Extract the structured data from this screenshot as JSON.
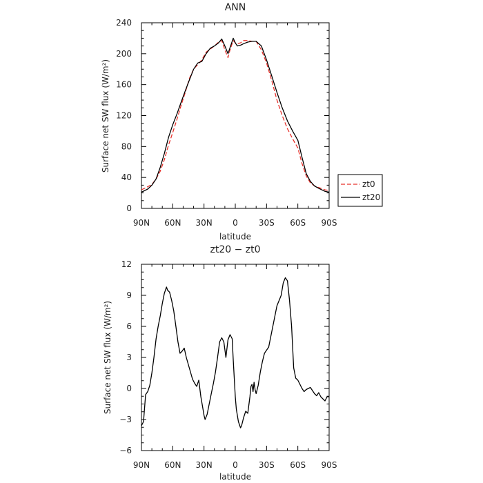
{
  "chart_data": [
    {
      "type": "line",
      "title": "ANN",
      "xlabel": "latitude",
      "ylabel": "Surface net SW flux (W/m²)",
      "xlim": [
        90,
        -90
      ],
      "ylim": [
        0,
        240
      ],
      "x_ticks": [
        90,
        60,
        30,
        0,
        -30,
        -60,
        -90
      ],
      "x_tick_labels": [
        "90N",
        "60N",
        "30N",
        "0",
        "30S",
        "60S",
        "90S"
      ],
      "y_ticks": [
        0,
        40,
        80,
        120,
        160,
        200,
        240
      ],
      "y_tick_labels": [
        "0",
        "40",
        "80",
        "120",
        "160",
        "200",
        "240"
      ],
      "legend_position": "right",
      "series": [
        {
          "name": "zt0",
          "color": "#e8302a",
          "style": "dashed",
          "x": [
            90,
            84,
            80,
            76,
            72,
            68,
            64,
            60,
            56,
            52,
            48,
            44,
            40,
            36,
            32,
            28,
            24,
            20,
            16,
            13,
            10,
            7,
            5,
            2,
            0,
            -2,
            -5,
            -8,
            -12,
            -16,
            -20,
            -25,
            -30,
            -35,
            -40,
            -45,
            -50,
            -55,
            -60,
            -64,
            -68,
            -72,
            -76,
            -80,
            -86,
            -90
          ],
          "y": [
            24,
            28,
            31,
            38,
            48,
            63,
            82,
            98,
            115,
            133,
            150,
            168,
            180,
            186,
            192,
            202,
            206,
            210,
            215,
            217,
            205,
            195,
            205,
            217,
            214,
            213,
            214,
            217,
            217,
            216,
            216,
            205,
            188,
            165,
            140,
            120,
            103,
            90,
            78,
            58,
            42,
            33,
            29,
            27,
            24,
            23
          ]
        },
        {
          "name": "zt20",
          "color": "#000000",
          "style": "solid",
          "x": [
            90,
            84,
            80,
            76,
            72,
            68,
            64,
            60,
            56,
            52,
            48,
            44,
            40,
            36,
            32,
            28,
            24,
            20,
            16,
            13,
            10,
            7,
            5,
            2,
            0,
            -2,
            -5,
            -8,
            -12,
            -16,
            -20,
            -25,
            -30,
            -35,
            -40,
            -45,
            -50,
            -55,
            -60,
            -64,
            -68,
            -72,
            -76,
            -80,
            -86,
            -90
          ],
          "y": [
            21,
            25,
            30,
            38,
            53,
            71,
            92,
            108,
            122,
            137,
            152,
            166,
            180,
            188,
            190,
            200,
            207,
            210,
            214,
            219,
            210,
            200,
            208,
            220,
            214,
            210,
            211,
            213,
            215,
            216,
            216,
            210,
            192,
            171,
            150,
            130,
            113,
            100,
            88,
            66,
            45,
            35,
            29,
            26,
            22,
            21
          ]
        }
      ]
    },
    {
      "type": "line",
      "title": "zt20 − zt0",
      "xlabel": "latitude",
      "ylabel": "Surface net SW flux (W/m²)",
      "xlim": [
        90,
        -90
      ],
      "ylim": [
        -6,
        12
      ],
      "x_ticks": [
        90,
        60,
        30,
        0,
        -30,
        -60,
        -90
      ],
      "x_tick_labels": [
        "90N",
        "60N",
        "30N",
        "0",
        "30S",
        "60S",
        "90S"
      ],
      "y_ticks": [
        -6,
        -3,
        0,
        3,
        6,
        9,
        12
      ],
      "y_tick_labels": [
        "−6",
        "−3",
        "0",
        "3",
        "6",
        "9",
        "12"
      ],
      "series": [
        {
          "color": "#000000",
          "style": "solid",
          "x": [
            90,
            88,
            86,
            84,
            82,
            80,
            78,
            76,
            74,
            72,
            70,
            68,
            66,
            65,
            63,
            61,
            59,
            57,
            55,
            53,
            51,
            49,
            47,
            45,
            43,
            41,
            39,
            37,
            35,
            33,
            31,
            30,
            29,
            27,
            25,
            23,
            21,
            19,
            17,
            15,
            13,
            11,
            9,
            7,
            5,
            3,
            2,
            0,
            -1,
            -3,
            -5,
            -6,
            -8,
            -10,
            -12,
            -14,
            -15,
            -16,
            -17,
            -18,
            -19,
            -20,
            -22,
            -24,
            -26,
            -28,
            -30,
            -32,
            -34,
            -36,
            -38,
            -40,
            -42,
            -44,
            -46,
            -48,
            -50,
            -52,
            -54,
            -55,
            -56,
            -58,
            -60,
            -62,
            -64,
            -66,
            -68,
            -70,
            -72,
            -74,
            -76,
            -78,
            -80,
            -82,
            -84,
            -86,
            -88,
            -90
          ],
          "y": [
            -3.6,
            -3.2,
            -0.6,
            -0.3,
            0.3,
            1.5,
            3.0,
            4.8,
            6.0,
            7.0,
            8.2,
            9.2,
            9.8,
            9.5,
            9.3,
            8.5,
            7.5,
            6.0,
            4.5,
            3.4,
            3.6,
            3.9,
            3.0,
            2.3,
            1.6,
            0.9,
            0.5,
            0.2,
            0.8,
            -0.8,
            -2.0,
            -2.6,
            -3.0,
            -2.5,
            -1.5,
            -0.5,
            0.5,
            1.6,
            3.0,
            4.5,
            4.9,
            4.5,
            3.0,
            4.7,
            5.2,
            4.8,
            2.8,
            -0.8,
            -2.0,
            -3.2,
            -3.8,
            -3.6,
            -2.8,
            -2.2,
            -2.4,
            -0.8,
            0.2,
            0.4,
            -0.3,
            0.6,
            -0.1,
            -0.5,
            0.3,
            1.6,
            2.6,
            3.4,
            3.7,
            4.0,
            5.0,
            6.0,
            7.0,
            8.0,
            8.5,
            9.0,
            10.2,
            10.7,
            10.4,
            8.5,
            6.0,
            4.0,
            2.0,
            1.0,
            0.8,
            0.4,
            0.0,
            -0.3,
            -0.1,
            0.0,
            0.1,
            -0.2,
            -0.5,
            -0.7,
            -0.4,
            -0.8,
            -1.0,
            -1.2,
            -0.8,
            -0.8
          ]
        }
      ]
    }
  ]
}
